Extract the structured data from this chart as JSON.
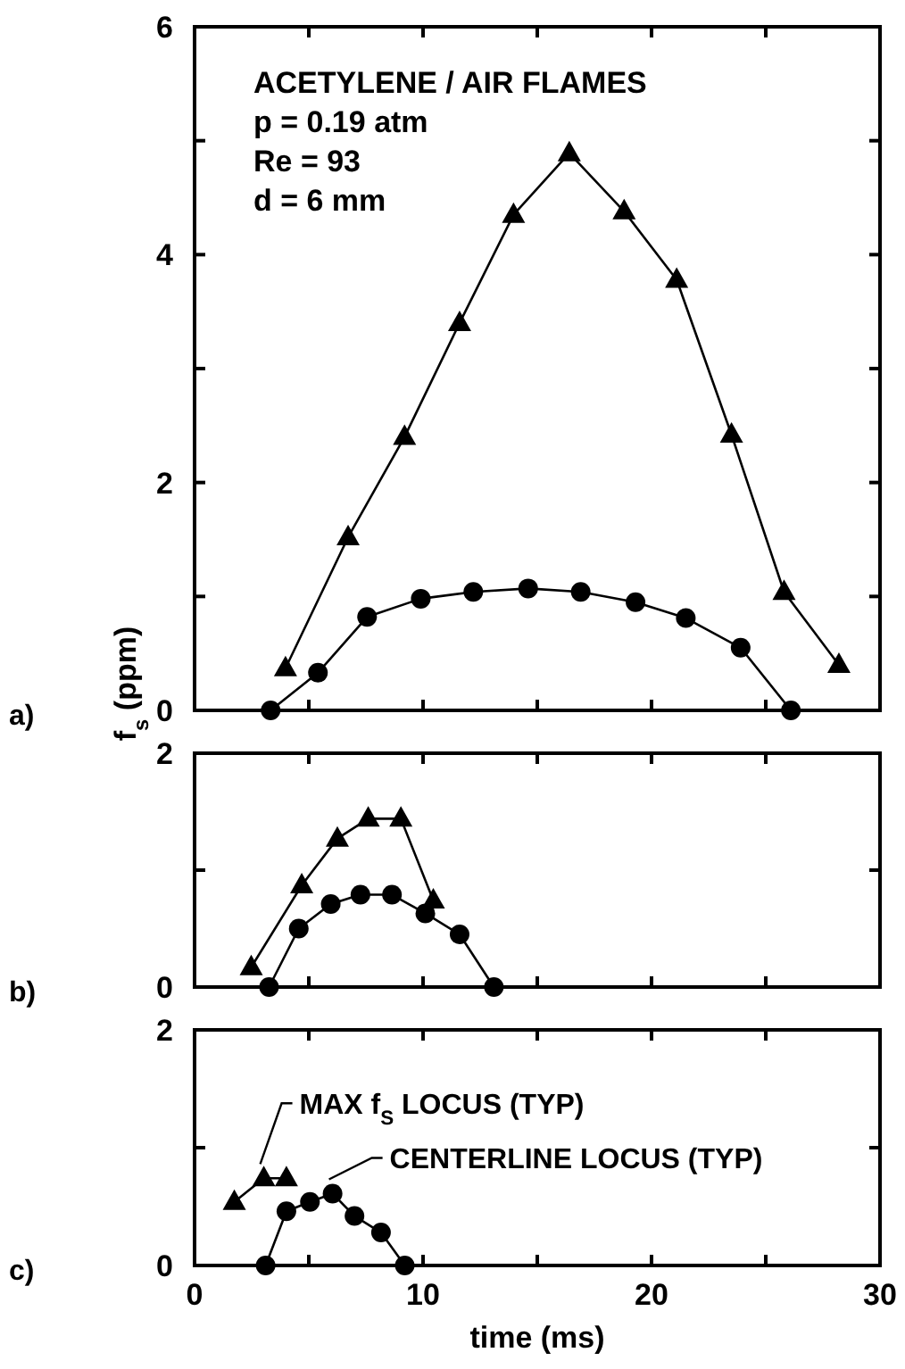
{
  "chart_data": [
    {
      "type": "line",
      "xlim": [
        0,
        30
      ],
      "ylim": [
        0,
        6
      ],
      "ylabel": "f$_{s}$ (ppm)",
      "tick_labels": "y",
      "xticks": [
        0,
        {
          "value": 5,
          "label": null
        },
        10,
        {
          "value": 15,
          "label": null
        },
        20,
        {
          "value": 25,
          "label": null
        },
        30
      ],
      "yticks": [
        0,
        {
          "value": 1,
          "label": null
        },
        2,
        {
          "value": 3,
          "label": null
        },
        4,
        {
          "value": 5,
          "label": null
        },
        6
      ],
      "annotations": [
        "ACETYLENE / AIR FLAMES",
        "p = 0.19 atm",
        "Re = 93",
        "d = 6 mm",
        "a)"
      ],
      "series": [
        {
          "color": "#000000",
          "marker": "triangle",
          "x": [
            3.98,
            6.72,
            9.19,
            11.6,
            13.96,
            16.4,
            18.8,
            21.1,
            23.5,
            25.8,
            28.2
          ],
          "values": [
            0.37,
            1.52,
            2.4,
            3.4,
            4.35,
            4.89,
            4.38,
            3.78,
            2.42,
            1.04,
            0.4
          ]
        },
        {
          "color": "#000000",
          "marker": "circle",
          "x": [
            3.33,
            5.4,
            7.55,
            9.9,
            12.2,
            14.6,
            16.9,
            19.3,
            21.5,
            23.9,
            26.1
          ],
          "values": [
            0,
            0.33,
            0.82,
            0.98,
            1.04,
            1.07,
            1.04,
            0.95,
            0.81,
            0.55,
            0
          ]
        }
      ]
    },
    {
      "type": "line",
      "xlim": [
        0,
        30
      ],
      "ylim": [
        0,
        2
      ],
      "tick_labels": "y",
      "xticks": [
        0,
        {
          "value": 5,
          "label": null
        },
        10,
        {
          "value": 15,
          "label": null
        },
        20,
        {
          "value": 25,
          "label": null
        },
        30
      ],
      "yticks": [
        0,
        {
          "value": 1,
          "label": null
        },
        2
      ],
      "annotations": [
        "b)"
      ],
      "series": [
        {
          "color": "#000000",
          "marker": "triangle",
          "x": [
            2.48,
            4.69,
            6.25,
            7.6,
            9.03,
            10.45
          ],
          "values": [
            0.17,
            0.87,
            1.27,
            1.44,
            1.44,
            0.74
          ]
        },
        {
          "color": "#000000",
          "marker": "circle",
          "x": [
            3.26,
            4.56,
            5.96,
            7.26,
            8.64,
            10.1,
            11.6,
            13.1
          ],
          "values": [
            0,
            0.5,
            0.71,
            0.79,
            0.79,
            0.63,
            0.45,
            0
          ]
        }
      ]
    },
    {
      "type": "line",
      "xlim": [
        0,
        30
      ],
      "ylim": [
        0,
        2
      ],
      "xlabel": "time (ms)",
      "xticks": [
        0,
        {
          "value": 5,
          "label": null
        },
        10,
        {
          "value": 15,
          "label": null
        },
        20,
        {
          "value": 25,
          "label": null
        },
        30
      ],
      "yticks": [
        0,
        {
          "value": 1,
          "label": null
        },
        2
      ],
      "annotations": [
        {
          "text": "MAX f$_{S}$ LOCUS (TYP)",
          "x": 3.03,
          "y": 0.74
        },
        {
          "text": "CENTERLINE LOCUS (TYP)",
          "x": 6.04,
          "y": 0.61
        },
        "c)"
      ],
      "series": [
        {
          "color": "#000000",
          "marker": "triangle",
          "x": [
            1.74,
            3.03,
            4.02
          ],
          "values": [
            0.54,
            0.74,
            0.74
          ]
        },
        {
          "color": "#000000",
          "marker": "circle",
          "x": [
            3.11,
            4.02,
            5.05,
            6.04,
            7.0,
            8.16,
            9.2
          ],
          "values": [
            0,
            0.46,
            0.54,
            0.61,
            0.42,
            0.28,
            0
          ]
        }
      ]
    }
  ]
}
